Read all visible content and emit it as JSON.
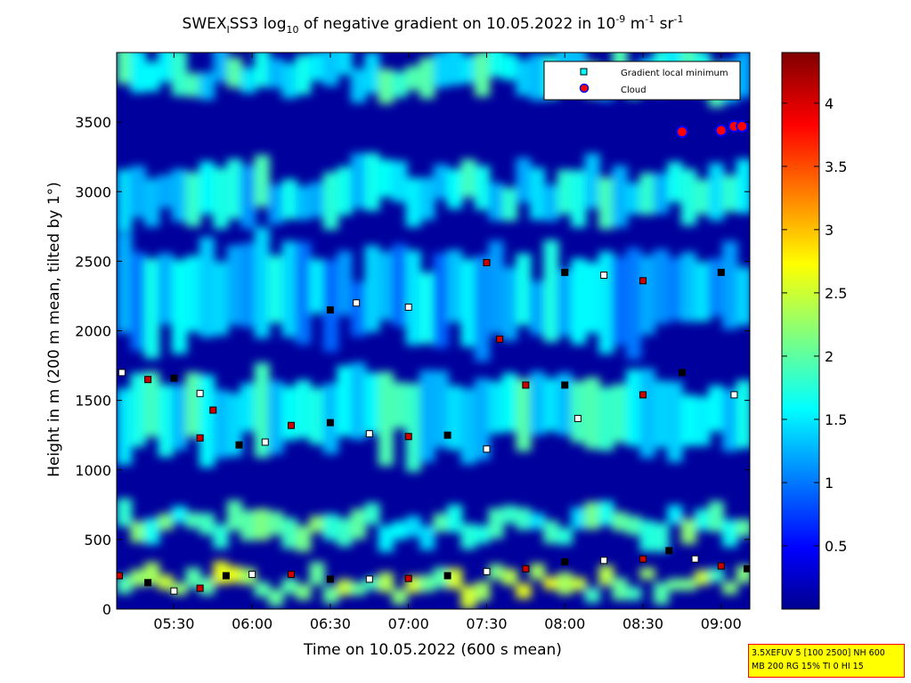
{
  "chart_data": {
    "type": "heatmap",
    "title": {
      "prefix": "SWEX",
      "prefix_sub": "I",
      "mid": "SS3 log",
      "log_sub": "10",
      "mid2": " of negative gradient on 10.05.2022 in 10",
      "exp1": "-9",
      "unit1": " m",
      "exp2": "-1",
      "unit2": " sr",
      "exp3": "-1"
    },
    "xlabel": "Time on 10.05.2022 (600 s mean)",
    "ylabel": "Height in m (200 m mean, tilted by 1°)",
    "x_ticks": [
      "05:30",
      "06:00",
      "06:30",
      "07:00",
      "07:30",
      "08:00",
      "08:30",
      "09:00"
    ],
    "x_range": [
      "05:08",
      "09:11"
    ],
    "y_ticks": [
      0,
      500,
      1000,
      1500,
      2000,
      2500,
      3000,
      3500
    ],
    "ylim": [
      0,
      4000
    ],
    "colorbar": {
      "ticks": [
        0.5,
        1,
        1.5,
        2,
        2.5,
        3,
        3.5,
        4
      ],
      "range": [
        0,
        4.4
      ],
      "colormap": "jet"
    },
    "legend": {
      "placement": "top-right",
      "entries": [
        {
          "label": "Gradient local minimum",
          "marker": "square",
          "color": "#00ffff"
        },
        {
          "label": "Cloud",
          "marker": "circle",
          "color": "#ff0000",
          "edge": "#0000ff"
        }
      ]
    },
    "background_field": {
      "description_levels": "log10 gradient values",
      "layers": [
        {
          "height_range": [
            100,
            250
          ],
          "value": 2.2
        },
        {
          "height_range": [
            500,
            700
          ],
          "value": 1.8
        },
        {
          "height_range": [
            1100,
            1700
          ],
          "value": 1.6
        },
        {
          "height_range": [
            1900,
            2600
          ],
          "value": 1.3
        },
        {
          "height_range": [
            2800,
            3200
          ],
          "value": 1.5
        },
        {
          "height_range": [
            3700,
            4000
          ],
          "value": 1.6
        }
      ]
    },
    "series": [
      {
        "name": "Gradient local minimum",
        "points": [
          [
            "05:09",
            240
          ],
          [
            "05:20",
            190
          ],
          [
            "05:30",
            130
          ],
          [
            "05:40",
            150
          ],
          [
            "05:50",
            240
          ],
          [
            "06:00",
            250
          ],
          [
            "06:15",
            250
          ],
          [
            "06:30",
            215
          ],
          [
            "06:45",
            215
          ],
          [
            "07:00",
            220
          ],
          [
            "07:15",
            240
          ],
          [
            "07:30",
            270
          ],
          [
            "07:45",
            290
          ],
          [
            "08:00",
            340
          ],
          [
            "08:15",
            350
          ],
          [
            "08:30",
            360
          ],
          [
            "08:40",
            420
          ],
          [
            "08:50",
            360
          ],
          [
            "09:00",
            310
          ],
          [
            "09:10",
            290
          ],
          [
            "05:10",
            1700
          ],
          [
            "05:20",
            1650
          ],
          [
            "05:30",
            1660
          ],
          [
            "05:40",
            1550
          ],
          [
            "05:45",
            1430
          ],
          [
            "05:55",
            1180
          ],
          [
            "06:05",
            1200
          ],
          [
            "06:15",
            1320
          ],
          [
            "06:30",
            1340
          ],
          [
            "06:45",
            1260
          ],
          [
            "07:00",
            1240
          ],
          [
            "07:15",
            1250
          ],
          [
            "07:30",
            1150
          ],
          [
            "07:45",
            1610
          ],
          [
            "08:00",
            1610
          ],
          [
            "08:05",
            1370
          ],
          [
            "08:30",
            1540
          ],
          [
            "08:45",
            1700
          ],
          [
            "09:05",
            1540
          ],
          [
            "05:40",
            1230
          ],
          [
            "06:30",
            2150
          ],
          [
            "07:00",
            2170
          ],
          [
            "07:30",
            2490
          ],
          [
            "08:00",
            2420
          ],
          [
            "08:15",
            2400
          ],
          [
            "08:30",
            2360
          ],
          [
            "09:00",
            2420
          ],
          [
            "06:40",
            2200
          ],
          [
            "07:35",
            1940
          ]
        ]
      },
      {
        "name": "Cloud",
        "points": [
          [
            "08:45",
            3430
          ],
          [
            "09:00",
            3440
          ],
          [
            "09:05",
            3470
          ],
          [
            "09:08",
            3470
          ]
        ]
      }
    ]
  },
  "info_box": {
    "line1": "3.5XEFUV 5 [100 2500] NH 600",
    "line2": "MB 200 RG 15% TI 0 HI 15"
  }
}
